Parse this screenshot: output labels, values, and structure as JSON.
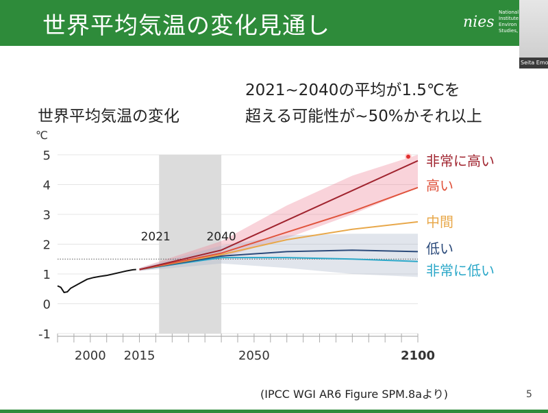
{
  "header": {
    "title": "世界平均気温の変化見通し",
    "logo_text": [
      "National",
      "Institute",
      "Environ",
      "Studies,"
    ],
    "logo_mark": "nies"
  },
  "video": {
    "name": "Seita Emo"
  },
  "note": {
    "line1": "2021~2040の平均が1.5℃を",
    "line2": "超える可能性が~50%かそれ以上"
  },
  "subtitle": "世界平均気温の変化",
  "source": "(IPCC WGI AR6 Figure SPM.8aより)",
  "page_number": "5",
  "colors": {
    "header": "#2e8b3a",
    "very_high": "#a0242f",
    "high": "#e0533c",
    "intermediate": "#e8a84a",
    "low": "#2b4a7a",
    "very_low": "#2aa7c8"
  },
  "chart_data": {
    "type": "line",
    "y_unit": "℃",
    "ylim": [
      -1,
      5
    ],
    "yticks": [
      "-1",
      "0",
      "1",
      "2",
      "3",
      "4",
      "5"
    ],
    "xlim": [
      1990,
      2100
    ],
    "xticks": [
      "2000",
      "2015",
      "2050",
      "2100"
    ],
    "period_highlight": {
      "start": 2021,
      "end": 2040,
      "start_label": "2021",
      "end_label": "2040"
    },
    "threshold_line": 1.5,
    "historical": {
      "x": [
        1990,
        1991,
        1992,
        1993,
        1994,
        1995,
        1997,
        1999,
        2001,
        2003,
        2005,
        2007,
        2009,
        2011,
        2013,
        2014
      ],
      "y": [
        0.6,
        0.55,
        0.38,
        0.4,
        0.52,
        0.58,
        0.7,
        0.82,
        0.88,
        0.92,
        0.95,
        1.0,
        1.05,
        1.1,
        1.14,
        1.15
      ]
    },
    "series": [
      {
        "name": "非常に高い",
        "key": "very_high",
        "x": [
          2015,
          2040,
          2060,
          2080,
          2100
        ],
        "y": [
          1.15,
          1.8,
          2.8,
          3.8,
          4.8
        ],
        "band_low": [
          1.1,
          1.55,
          2.2,
          3.0,
          3.9
        ],
        "band_high": [
          1.2,
          2.1,
          3.3,
          4.3,
          5.0
        ]
      },
      {
        "name": "高い",
        "key": "high",
        "x": [
          2015,
          2040,
          2060,
          2080,
          2100
        ],
        "y": [
          1.15,
          1.7,
          2.4,
          3.1,
          3.9
        ]
      },
      {
        "name": "中間",
        "key": "intermediate",
        "x": [
          2015,
          2040,
          2060,
          2080,
          2100
        ],
        "y": [
          1.15,
          1.65,
          2.15,
          2.5,
          2.75
        ]
      },
      {
        "name": "低い",
        "key": "low",
        "x": [
          2015,
          2040,
          2060,
          2080,
          2100
        ],
        "y": [
          1.15,
          1.6,
          1.75,
          1.8,
          1.75
        ],
        "band_low": [
          1.1,
          1.35,
          1.2,
          1.0,
          0.9
        ],
        "band_high": [
          1.2,
          1.95,
          2.3,
          2.35,
          2.35
        ]
      },
      {
        "name": "非常に低い",
        "key": "very_low",
        "x": [
          2015,
          2040,
          2060,
          2080,
          2100
        ],
        "y": [
          1.15,
          1.55,
          1.55,
          1.5,
          1.42
        ]
      }
    ]
  }
}
